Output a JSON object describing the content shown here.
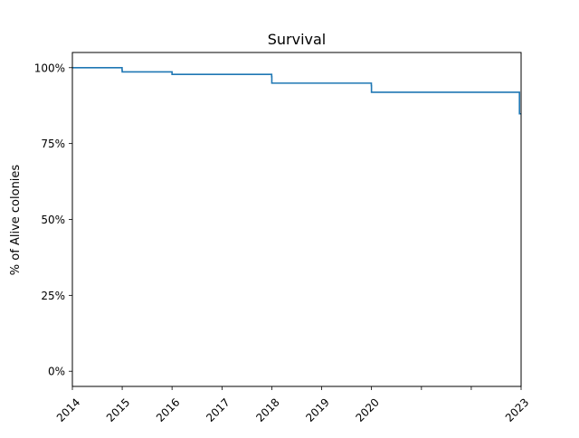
{
  "chart_data": {
    "type": "line",
    "title": "Survival",
    "xlabel": "",
    "ylabel": "% of Alive colonies",
    "x_axis": {
      "scale": "time",
      "range": [
        "2014-01-01",
        "2023-01-01"
      ],
      "ticks": [
        {
          "date": "2014-01-01",
          "label": "2014"
        },
        {
          "date": "2015-01-01",
          "label": "2015"
        },
        {
          "date": "2016-01-01",
          "label": "2016"
        },
        {
          "date": "2017-01-01",
          "label": "2017"
        },
        {
          "date": "2018-01-01",
          "label": "2018"
        },
        {
          "date": "2019-01-01",
          "label": "2019"
        },
        {
          "date": "2020-01-01",
          "label": "2020"
        },
        {
          "date": "2021-01-01",
          "label": ""
        },
        {
          "date": "2022-01-01",
          "label": ""
        },
        {
          "date": "2023-01-01",
          "label": "2023"
        }
      ],
      "tick_label_rotation": -45
    },
    "y_axis": {
      "ylim": [
        -5,
        105
      ],
      "ticks": [
        {
          "value": 0,
          "label": "0%"
        },
        {
          "value": 25,
          "label": "25%"
        },
        {
          "value": 50,
          "label": "50%"
        },
        {
          "value": 75,
          "label": "75%"
        },
        {
          "value": 100,
          "label": "100%"
        }
      ]
    },
    "grid": false,
    "series": [
      {
        "color": "#1f77b4",
        "style": "step",
        "points": [
          {
            "x": "2014-01-01",
            "y": 100.0
          },
          {
            "x": "2014-12-31",
            "y": 99.2
          },
          {
            "x": "2015-01-01",
            "y": 98.6
          },
          {
            "x": "2016-01-01",
            "y": 97.8
          },
          {
            "x": "2017-12-31",
            "y": 97.0
          },
          {
            "x": "2018-01-01",
            "y": 94.9
          },
          {
            "x": "2019-12-31",
            "y": 94.1
          },
          {
            "x": "2020-01-01",
            "y": 91.9
          },
          {
            "x": "2022-12-20",
            "y": 91.1
          },
          {
            "x": "2022-12-20",
            "y": 84.8
          },
          {
            "x": "2023-01-01",
            "y": 84.8
          }
        ]
      }
    ]
  }
}
